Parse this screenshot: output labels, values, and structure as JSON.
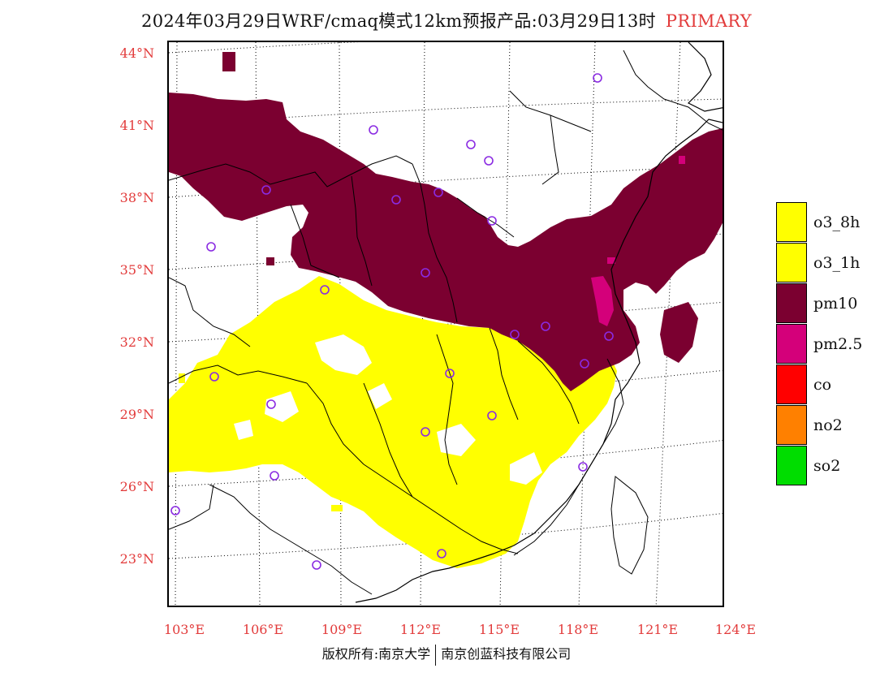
{
  "title": {
    "main": "2024年03月29日WRF/cmaq模式12km预报产品:03月29日13时",
    "tag": "PRIMARY"
  },
  "axes": {
    "lat_labels": [
      "44°N",
      "41°N",
      "38°N",
      "35°N",
      "32°N",
      "29°N",
      "26°N",
      "23°N"
    ],
    "lon_labels": [
      "103°E",
      "106°E",
      "109°E",
      "112°E",
      "115°E",
      "118°E",
      "121°E",
      "124°E"
    ]
  },
  "legend": [
    {
      "label": "o3_8h",
      "color": "#ffff00"
    },
    {
      "label": "o3_1h",
      "color": "#ffff00"
    },
    {
      "label": "pm10",
      "color": "#7b0030"
    },
    {
      "label": "pm2.5",
      "color": "#d4007a"
    },
    {
      "label": "co",
      "color": "#ff0000"
    },
    {
      "label": "no2",
      "color": "#ff8000"
    },
    {
      "label": "so2",
      "color": "#00dd00"
    }
  ],
  "footer": {
    "left": "版权所有:南京大学",
    "right": "南京创蓝科技有限公司"
  },
  "colors": {
    "pm10": "#7b0030",
    "o3": "#ffff00",
    "pm25": "#d4007a",
    "station": "#8a2be2",
    "label": "#e23b3b"
  }
}
